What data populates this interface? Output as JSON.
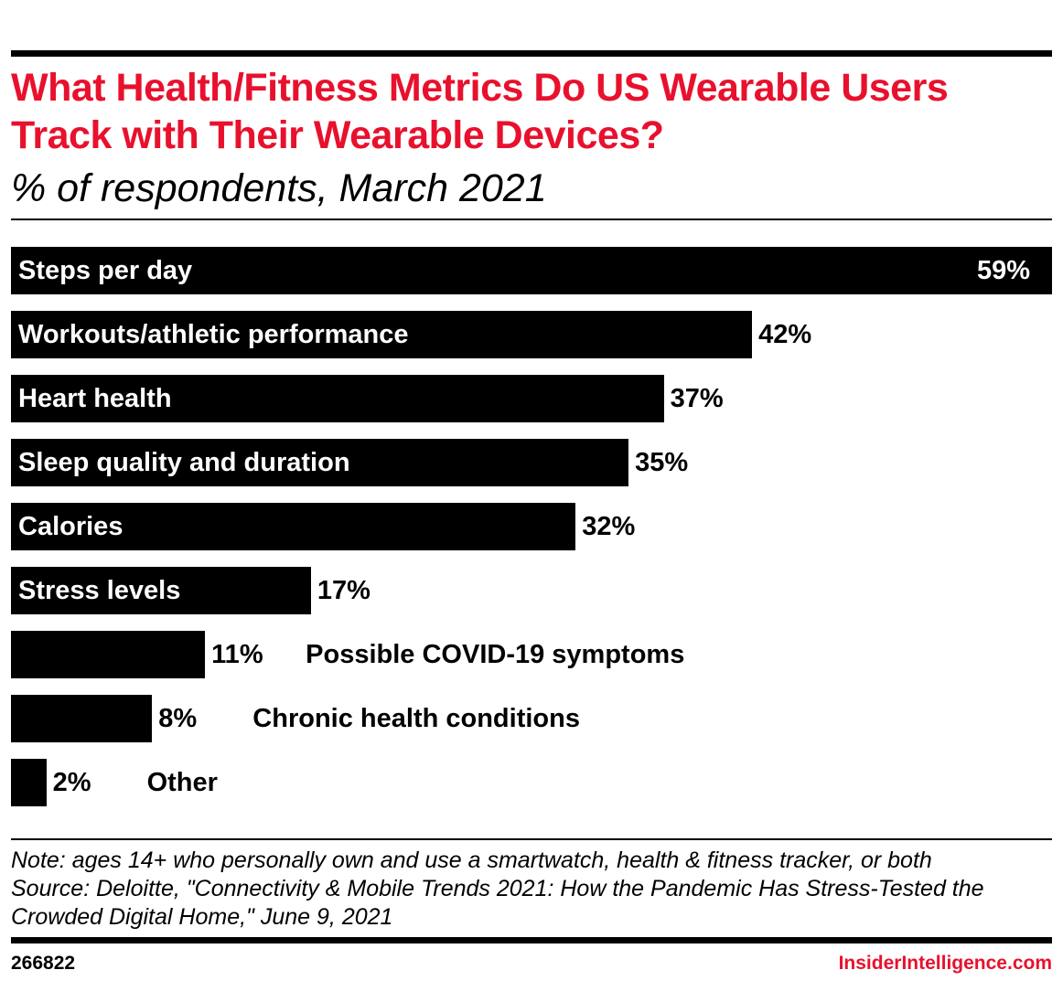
{
  "chart_data": {
    "type": "bar",
    "orientation": "horizontal",
    "title": "What Health/Fitness Metrics Do US Wearable Users Track with Their Wearable Devices?",
    "subtitle": "% of respondents, March 2021",
    "categories": [
      "Steps per day",
      "Workouts/athletic performance",
      "Heart health",
      "Sleep quality and duration",
      "Calories",
      "Stress levels",
      "Possible COVID-19 symptoms",
      "Chronic health conditions",
      "Other"
    ],
    "values": [
      59,
      42,
      37,
      35,
      32,
      17,
      11,
      8,
      2
    ],
    "value_labels": [
      "59%",
      "42%",
      "37%",
      "35%",
      "32%",
      "17%",
      "11%",
      "8%",
      "2%"
    ],
    "xlim": [
      0,
      59
    ],
    "grid": false,
    "bar_color": "#000000",
    "title_color": "#e8112d"
  },
  "note": "Note: ages 14+ who personally own and use a smartwatch, health & fitness tracker, or both",
  "source": "Source: Deloitte, \"Connectivity & Mobile Trends 2021: How the Pandemic Has Stress-Tested the Crowded Digital Home,\" June 9, 2021",
  "footer": {
    "chart_id": "266822",
    "brand": "InsiderIntelligence.com"
  }
}
